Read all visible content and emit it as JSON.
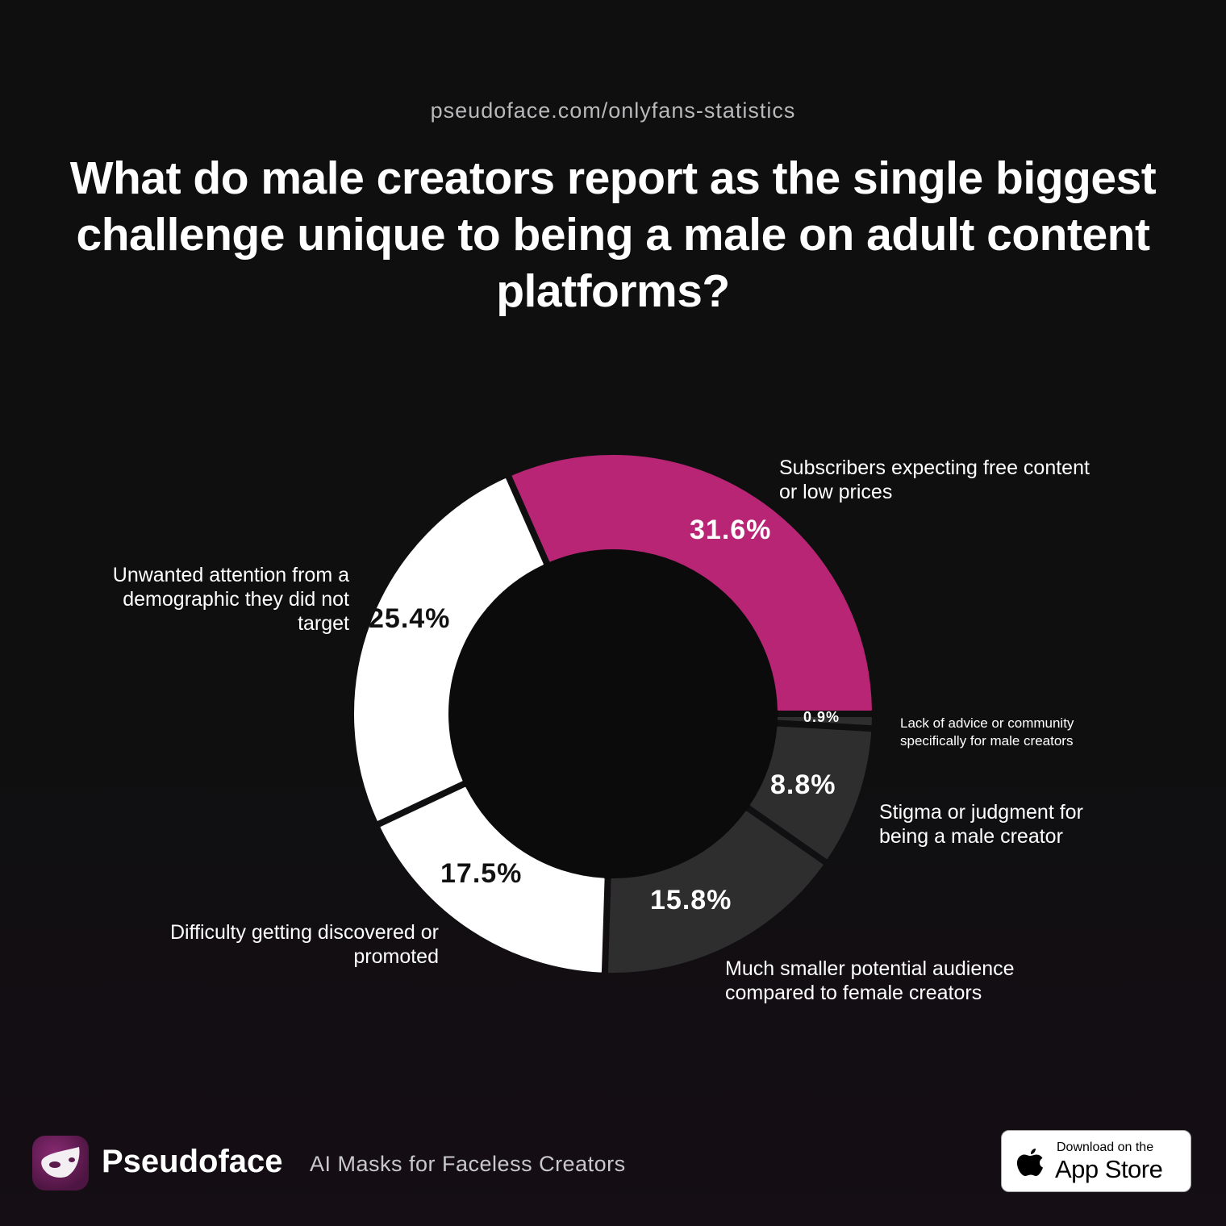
{
  "header": {
    "url": "pseudoface.com/onlyfans-statistics",
    "title": "What do male creators report as the single biggest challenge unique to being a male on adult content platforms?"
  },
  "colors": {
    "background": "#0f0f10",
    "accent": "#b82574",
    "white_segment": "#ffffff",
    "dark_segment": "#2e2e2e",
    "center": "#0b0b0b"
  },
  "chart_data": {
    "type": "pie",
    "subtype": "donut",
    "title": "What do male creators report as the single biggest challenge unique to being a male on adult content platforms?",
    "categories": [
      "Subscribers expecting free content or low prices",
      "Unwanted attention from a demographic they did not target",
      "Difficulty getting discovered or promoted",
      "Much smaller potential audience compared to female creators",
      "Stigma or judgment for being a male creator",
      "Lack of advice or community specifically for male creators"
    ],
    "values": [
      31.6,
      25.4,
      17.5,
      15.8,
      8.8,
      0.9
    ],
    "unit": "%",
    "start_angle": "3 o'clock",
    "direction": "counterclockwise",
    "legend": "none (direct labels)"
  },
  "segments": [
    {
      "label_lines": [
        "Subscribers expecting free content",
        "or low prices"
      ],
      "pct": "31.6%",
      "color": "#b82574",
      "text_color": "#ffffff"
    },
    {
      "label_lines": [
        "Unwanted attention from a",
        "demographic they did not",
        "target"
      ],
      "pct": "25.4%",
      "color": "#ffffff",
      "text_color": "#111111"
    },
    {
      "label_lines": [
        "Difficulty getting discovered or",
        "promoted"
      ],
      "pct": "17.5%",
      "color": "#ffffff",
      "text_color": "#111111"
    },
    {
      "label_lines": [
        "Much smaller potential audience",
        "compared to female creators"
      ],
      "pct": "15.8%",
      "color": "#2e2e2e",
      "text_color": "#ffffff"
    },
    {
      "label_lines": [
        "Stigma or judgment for",
        "being a male creator"
      ],
      "pct": "8.8%",
      "color": "#2e2e2e",
      "text_color": "#ffffff"
    },
    {
      "label_lines": [
        "Lack of advice or community",
        "specifically for male creators"
      ],
      "pct": "0.9%",
      "color": "#2e2e2e",
      "text_color": "#ffffff"
    }
  ],
  "footer": {
    "brand": "Pseudoface",
    "tagline": "AI Masks for Faceless Creators",
    "logo_icon": "mask-icon",
    "appstore_small": "Download on the",
    "appstore_big": "App Store",
    "appstore_icon": "apple-icon"
  }
}
